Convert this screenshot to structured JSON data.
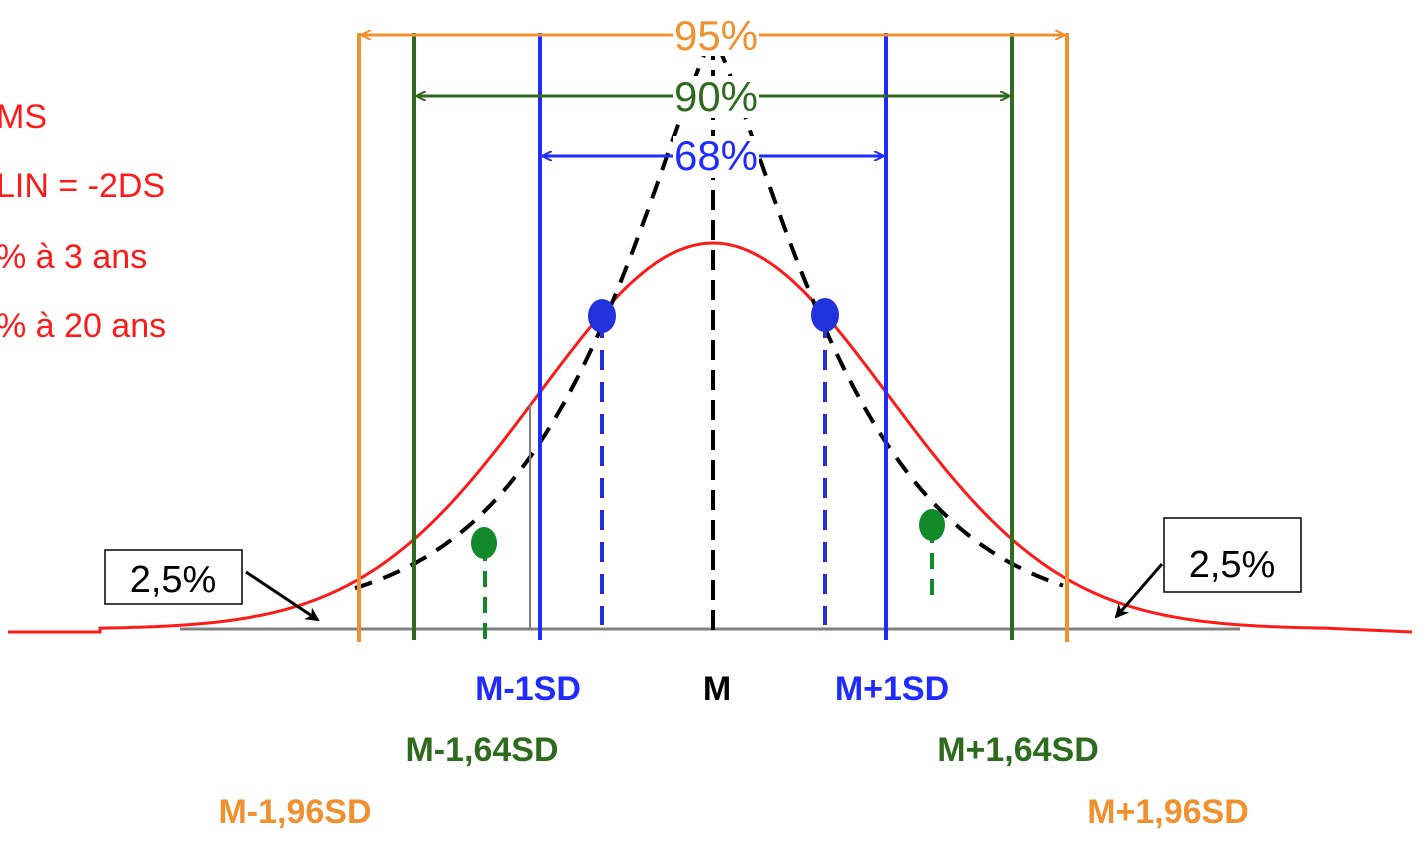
{
  "notes": {
    "lines": [
      "MS",
      "LIN = -2DS",
      "% à 3 ans",
      "% à 20 ans"
    ],
    "color": "#ff1a1a"
  },
  "intervals": {
    "p95": {
      "label": "95%",
      "color": "#f0902f"
    },
    "p90": {
      "label": "90%",
      "color": "#2e6b1f"
    },
    "p68": {
      "label": "68%",
      "color": "#1f2bff"
    }
  },
  "tails": {
    "left_label": "2,5%",
    "right_label": "2,5%"
  },
  "axis_labels": {
    "m_minus_1sd": "M-1SD",
    "m": "M",
    "m_plus_1sd": "M+1SD",
    "m_minus_164sd": "M-1,64SD",
    "m_plus_164sd": "M+1,64SD",
    "m_minus_196sd": "M-1,96SD",
    "m_plus_196sd": "M+1,96SD"
  },
  "colors": {
    "red_curve": "#ff1a1a",
    "black_curve": "#000000",
    "blue": "#1f2bff",
    "green": "#2e6b1f",
    "orange": "#f0902f",
    "baseline": "#808080",
    "dot_blue": "#2233dd",
    "dot_green": "#138a2a"
  }
}
